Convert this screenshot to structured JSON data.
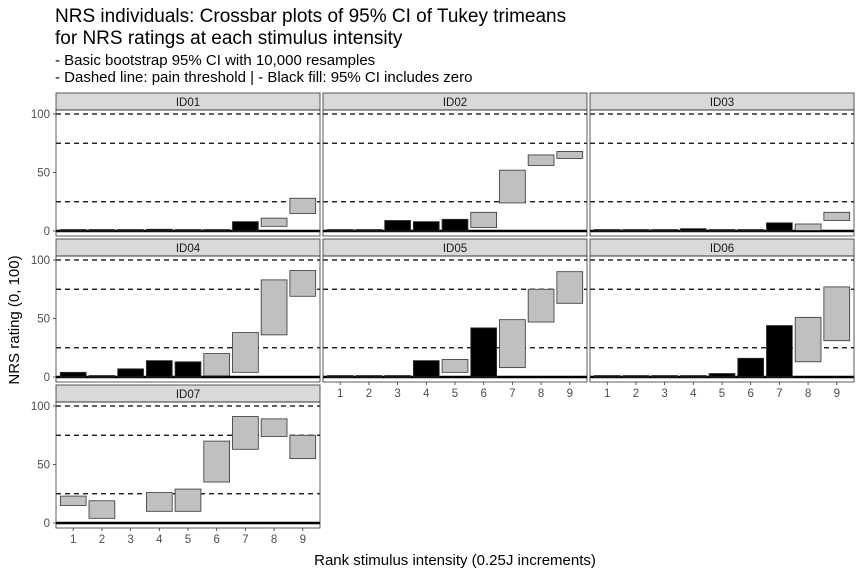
{
  "chart_data": {
    "type": "crossbar",
    "title": [
      "NRS individuals: Crossbar plots of 95% CI of Tukey trimeans",
      "for NRS ratings at each stimulus intensity"
    ],
    "subtitle": [
      "- Basic bootstrap 95% CI with 10,000 resamples",
      "- Dashed line: pain threshold | - Black fill: 95% CI includes zero"
    ],
    "xlabel": "Rank stimulus intensity (0.25J increments)",
    "ylabel": "NRS rating (0, 100)",
    "x_ticks": [
      1,
      2,
      3,
      4,
      5,
      6,
      7,
      8,
      9
    ],
    "y_ticks": [
      0,
      50,
      100
    ],
    "ylim": [
      0,
      100
    ],
    "reference_lines": [
      25,
      75,
      100
    ],
    "fill_colors": {
      "includes_zero": "#000000",
      "excludes_zero": "#c0c0c0"
    },
    "panels": [
      {
        "id": "ID01",
        "bars": [
          {
            "x": 1,
            "low": 0,
            "high": 0.5,
            "includes_zero": true
          },
          {
            "x": 2,
            "low": 0,
            "high": 0.5,
            "includes_zero": true
          },
          {
            "x": 3,
            "low": 0,
            "high": 0.5,
            "includes_zero": true
          },
          {
            "x": 4,
            "low": 0,
            "high": 1.5,
            "includes_zero": true
          },
          {
            "x": 5,
            "low": 0,
            "high": 1,
            "includes_zero": true
          },
          {
            "x": 6,
            "low": 0,
            "high": 1,
            "includes_zero": true
          },
          {
            "x": 7,
            "low": 0,
            "high": 8,
            "includes_zero": true
          },
          {
            "x": 8,
            "low": 4,
            "high": 11,
            "includes_zero": false
          },
          {
            "x": 9,
            "low": 15,
            "high": 28,
            "includes_zero": false
          }
        ]
      },
      {
        "id": "ID02",
        "bars": [
          {
            "x": 1,
            "low": 0,
            "high": 0.5,
            "includes_zero": true
          },
          {
            "x": 2,
            "low": 0,
            "high": 1,
            "includes_zero": true
          },
          {
            "x": 3,
            "low": 0,
            "high": 9,
            "includes_zero": true
          },
          {
            "x": 4,
            "low": 0,
            "high": 8,
            "includes_zero": true
          },
          {
            "x": 5,
            "low": 0,
            "high": 10,
            "includes_zero": true
          },
          {
            "x": 6,
            "low": 3,
            "high": 16,
            "includes_zero": false
          },
          {
            "x": 7,
            "low": 24,
            "high": 52,
            "includes_zero": false
          },
          {
            "x": 8,
            "low": 56,
            "high": 65,
            "includes_zero": false
          },
          {
            "x": 9,
            "low": 62,
            "high": 68,
            "includes_zero": false
          }
        ]
      },
      {
        "id": "ID03",
        "bars": [
          {
            "x": 1,
            "low": 0,
            "high": 0.5,
            "includes_zero": true
          },
          {
            "x": 2,
            "low": 0,
            "high": 1,
            "includes_zero": true
          },
          {
            "x": 3,
            "low": 0,
            "high": 0.5,
            "includes_zero": true
          },
          {
            "x": 4,
            "low": 0,
            "high": 2,
            "includes_zero": true
          },
          {
            "x": 5,
            "low": 0,
            "high": 0.5,
            "includes_zero": true
          },
          {
            "x": 6,
            "low": 0,
            "high": 0.5,
            "includes_zero": true
          },
          {
            "x": 7,
            "low": 0,
            "high": 7,
            "includes_zero": true
          },
          {
            "x": 8,
            "low": 0.5,
            "high": 6,
            "includes_zero": false
          },
          {
            "x": 9,
            "low": 9,
            "high": 16,
            "includes_zero": false
          }
        ]
      },
      {
        "id": "ID04",
        "bars": [
          {
            "x": 1,
            "low": 0,
            "high": 4,
            "includes_zero": true
          },
          {
            "x": 2,
            "low": 0,
            "high": 1,
            "includes_zero": true
          },
          {
            "x": 3,
            "low": 0,
            "high": 7,
            "includes_zero": true
          },
          {
            "x": 4,
            "low": 0,
            "high": 14,
            "includes_zero": true
          },
          {
            "x": 5,
            "low": 0,
            "high": 13,
            "includes_zero": true
          },
          {
            "x": 6,
            "low": 1,
            "high": 20,
            "includes_zero": false
          },
          {
            "x": 7,
            "low": 4,
            "high": 38,
            "includes_zero": false
          },
          {
            "x": 8,
            "low": 36,
            "high": 83,
            "includes_zero": false
          },
          {
            "x": 9,
            "low": 69,
            "high": 91,
            "includes_zero": false
          }
        ]
      },
      {
        "id": "ID05",
        "bars": [
          {
            "x": 1,
            "low": 0,
            "high": 0.5,
            "includes_zero": true
          },
          {
            "x": 2,
            "low": 0,
            "high": 1,
            "includes_zero": true
          },
          {
            "x": 3,
            "low": 0,
            "high": 0.5,
            "includes_zero": true
          },
          {
            "x": 4,
            "low": 0,
            "high": 14,
            "includes_zero": true
          },
          {
            "x": 5,
            "low": 4,
            "high": 15,
            "includes_zero": false
          },
          {
            "x": 6,
            "low": 0,
            "high": 42,
            "includes_zero": true
          },
          {
            "x": 7,
            "low": 8,
            "high": 49,
            "includes_zero": false
          },
          {
            "x": 8,
            "low": 47,
            "high": 75,
            "includes_zero": false
          },
          {
            "x": 9,
            "low": 63,
            "high": 90,
            "includes_zero": false
          }
        ]
      },
      {
        "id": "ID06",
        "bars": [
          {
            "x": 1,
            "low": 0,
            "high": 0.3,
            "includes_zero": true
          },
          {
            "x": 2,
            "low": 0,
            "high": 0.3,
            "includes_zero": true
          },
          {
            "x": 3,
            "low": 0,
            "high": 0.3,
            "includes_zero": true
          },
          {
            "x": 4,
            "low": 0,
            "high": 1,
            "includes_zero": true
          },
          {
            "x": 5,
            "low": 0,
            "high": 3,
            "includes_zero": true
          },
          {
            "x": 6,
            "low": 0,
            "high": 16,
            "includes_zero": true
          },
          {
            "x": 7,
            "low": 0,
            "high": 44,
            "includes_zero": true
          },
          {
            "x": 8,
            "low": 13,
            "high": 51,
            "includes_zero": false
          },
          {
            "x": 9,
            "low": 31,
            "high": 77,
            "includes_zero": false
          }
        ]
      },
      {
        "id": "ID07",
        "bars": [
          {
            "x": 1,
            "low": 15,
            "high": 23,
            "includes_zero": false
          },
          {
            "x": 2,
            "low": 4,
            "high": 19,
            "includes_zero": false
          },
          {
            "x": 4,
            "low": 10,
            "high": 26,
            "includes_zero": false
          },
          {
            "x": 5,
            "low": 10,
            "high": 29,
            "includes_zero": false
          },
          {
            "x": 6,
            "low": 35,
            "high": 70,
            "includes_zero": false
          },
          {
            "x": 7,
            "low": 63,
            "high": 91,
            "includes_zero": false
          },
          {
            "x": 8,
            "low": 74,
            "high": 89,
            "includes_zero": false
          },
          {
            "x": 9,
            "low": 55,
            "high": 75,
            "includes_zero": false
          }
        ]
      }
    ]
  }
}
